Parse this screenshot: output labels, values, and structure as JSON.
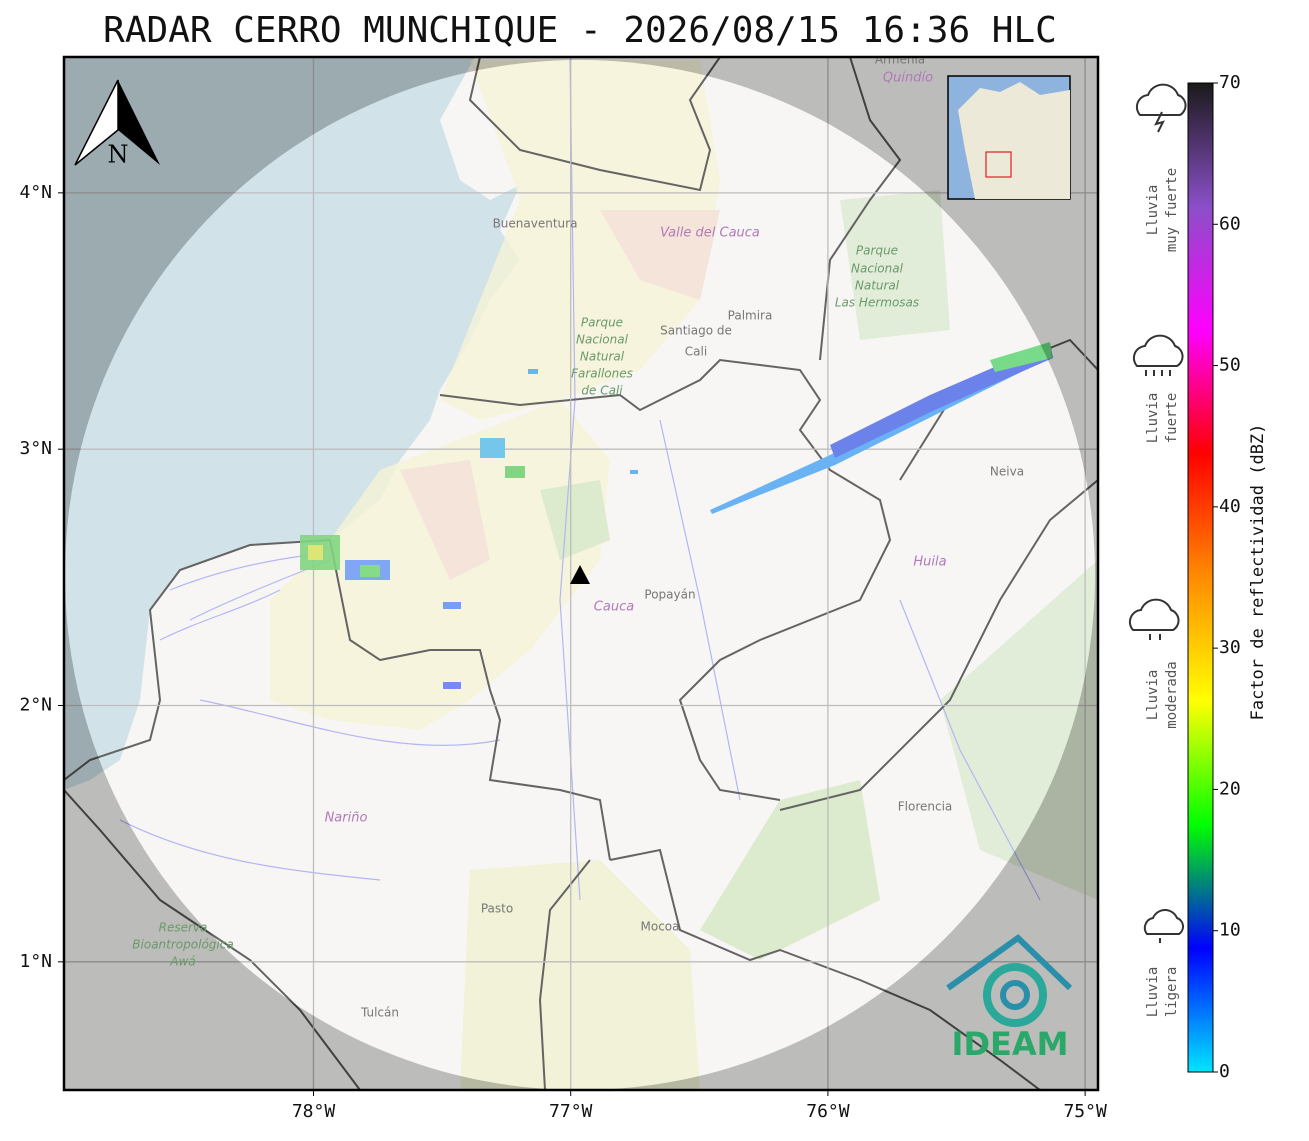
{
  "title": "RADAR CERRO MUNCHIQUE - 2026/08/15 16:36 HLC",
  "map": {
    "xlim": [
      -78.97,
      -74.95
    ],
    "ylim": [
      0.5,
      4.53
    ],
    "xticks": [
      {
        "value": -78,
        "label": "78°W"
      },
      {
        "value": -77,
        "label": "77°W"
      },
      {
        "value": -76,
        "label": "76°W"
      },
      {
        "value": -75,
        "label": "75°W"
      }
    ],
    "yticks": [
      {
        "value": 4,
        "label": "4°N"
      },
      {
        "value": 3,
        "label": "3°N"
      },
      {
        "value": 2,
        "label": "2°N"
      },
      {
        "value": 1,
        "label": "1°N"
      }
    ],
    "grid": true,
    "north_label": "N",
    "places": [
      [
        "Buenaventura"
      ],
      [
        "Valle del Cauca"
      ],
      [
        "Palmira"
      ],
      [
        "Santiago de",
        "Cali"
      ],
      [
        "Parque",
        "Nacional",
        "Natural",
        "Farallones",
        "de Cali"
      ],
      [
        "Parque",
        "Nacional",
        "Natural",
        "Las Hermosas"
      ],
      [
        "Popayán"
      ],
      [
        "Cauca"
      ],
      [
        "Huila"
      ],
      [
        "Neiva"
      ],
      [
        "Nariño"
      ],
      [
        "Pasto"
      ],
      [
        "Mocoa"
      ],
      [
        "Florencia"
      ],
      [
        "Tulcán"
      ],
      [
        "Reserva",
        "Bioantropológica",
        "Awá"
      ],
      [
        "Quindío"
      ],
      [
        "Armenia"
      ]
    ]
  },
  "colorbar": {
    "label": "Factor de reflectividad (dBZ)",
    "lim": [
      0,
      70
    ],
    "ticks": [
      0,
      10,
      20,
      30,
      40,
      50,
      60,
      70
    ],
    "colors": [
      "#00e5ff",
      "#0000ff",
      "#00ff00",
      "#ffff00",
      "#ff8c00",
      "#ff0000",
      "#ff00ff",
      "#8a4fc8",
      "#1a1a1a"
    ]
  },
  "rain_levels": [
    [
      "Lluvia",
      "muy fuerte"
    ],
    [
      "Lluvia",
      "fuerte"
    ],
    [
      "Lluvia",
      "moderada"
    ],
    [
      "Lluvia",
      "ligera"
    ]
  ],
  "logo": "IDEAM"
}
